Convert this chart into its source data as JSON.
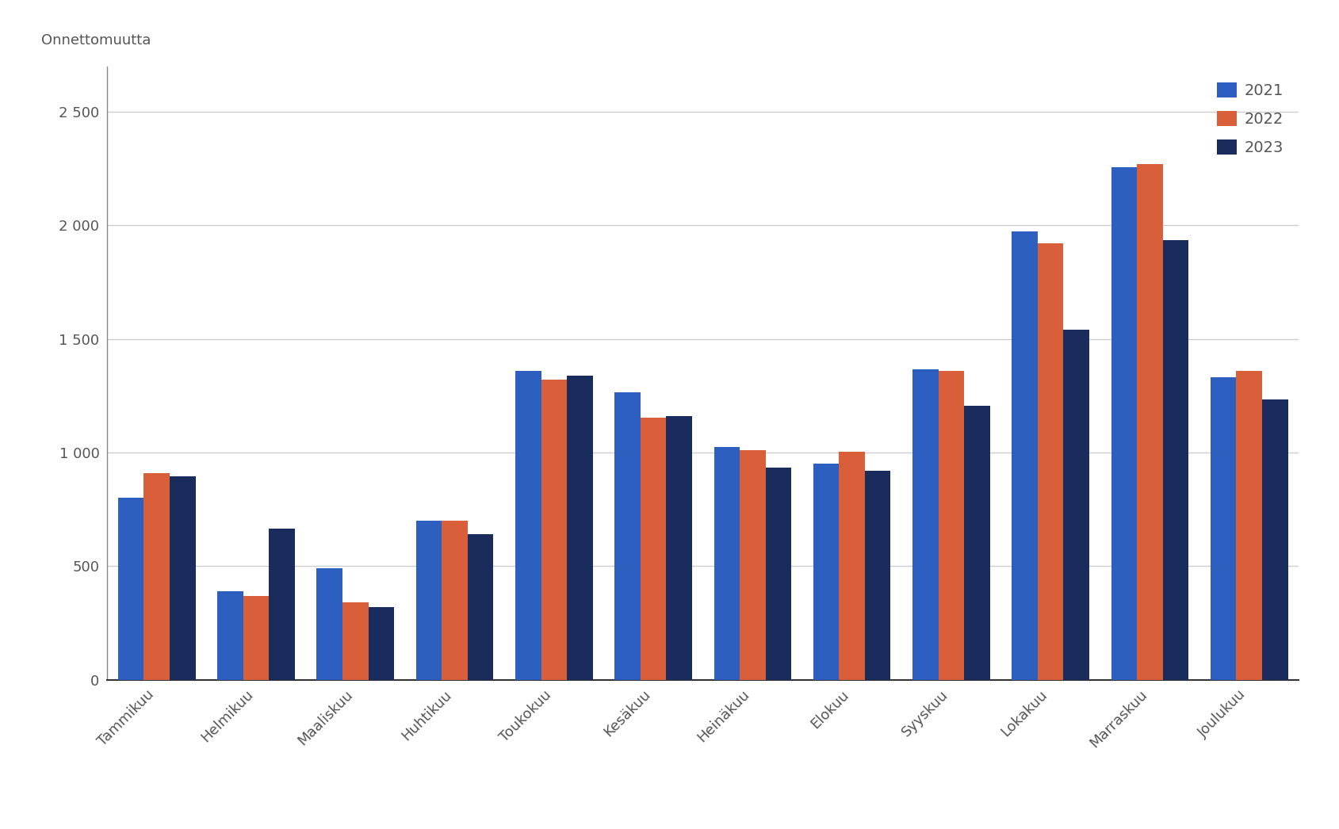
{
  "months": [
    "Tammikuu",
    "Helmikuu",
    "Maaliskuu",
    "Huhtikuu",
    "Toukokuu",
    "Kesäkuu",
    "Heinäkuu",
    "Elokuu",
    "Syyskuu",
    "Lokakuu",
    "Marraskuu",
    "Joulukuu"
  ],
  "series": {
    "2021": [
      800,
      390,
      490,
      700,
      1360,
      1265,
      1025,
      950,
      1365,
      1975,
      2255,
      1330
    ],
    "2022": [
      910,
      370,
      340,
      700,
      1320,
      1155,
      1010,
      1005,
      1360,
      1920,
      2270,
      1360
    ],
    "2023": [
      895,
      665,
      320,
      640,
      1340,
      1160,
      935,
      920,
      1205,
      1540,
      1935,
      1235
    ]
  },
  "colors": {
    "2021": "#2C5FBF",
    "2022": "#D95F3B",
    "2023": "#1A2C5B"
  },
  "ylabel": "Onnettomuutta",
  "ylim": [
    0,
    2700
  ],
  "yticks": [
    0,
    500,
    1000,
    1500,
    2000,
    2500
  ],
  "ytick_labels": [
    "0",
    "500",
    "1 000",
    "1 500",
    "2 000",
    "2 500"
  ],
  "background_color": "#ffffff",
  "plot_bg_color": "#ffffff",
  "grid_color": "#cccccc",
  "bar_width": 0.26,
  "legend_labels": [
    "2021",
    "2022",
    "2023"
  ],
  "tick_fontsize": 13,
  "ylabel_fontsize": 13,
  "legend_fontsize": 14
}
